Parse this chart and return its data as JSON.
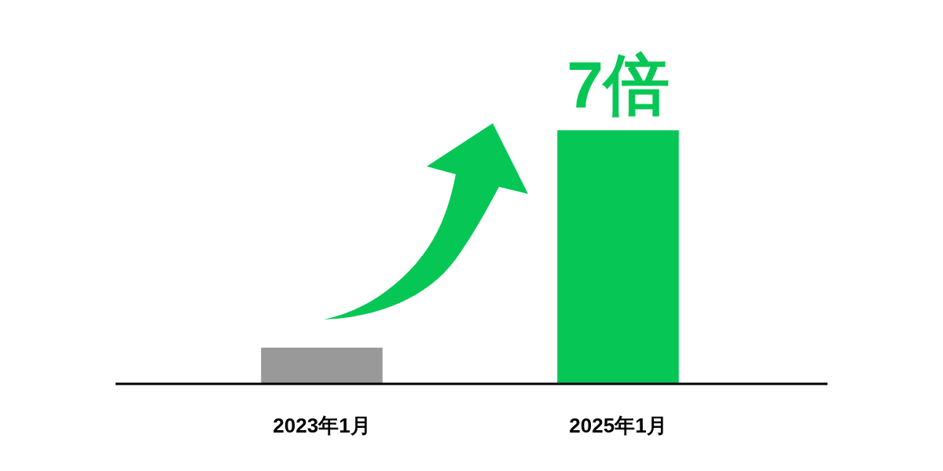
{
  "chart_data": {
    "type": "bar",
    "categories": [
      "2023年1月",
      "2025年1月"
    ],
    "values": [
      1,
      7
    ],
    "colors": [
      "#999999",
      "#06c755"
    ],
    "value_labels": [
      null,
      "7倍"
    ]
  }
}
